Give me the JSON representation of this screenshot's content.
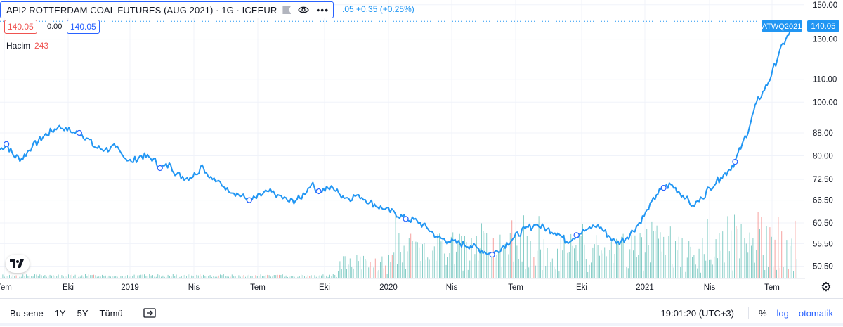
{
  "header": {
    "title": "API2 ROTTERDAM COAL FUTURES (AUG 2021) · 1G · ICEEUR",
    "change_partial": ".05",
    "change": "+0.35 (+0.25%)"
  },
  "legend": {
    "price_box_red": "140.05",
    "change_value": "0.00",
    "price_box_blue": "140.05",
    "volume_label": "Hacim",
    "volume_value": "243"
  },
  "price_scale": {
    "ticks": [
      "150.00",
      "130.00",
      "110.00",
      "100.00",
      "88.00",
      "80.00",
      "72.50",
      "66.50",
      "60.50",
      "55.50",
      "50.50"
    ],
    "symbol_tag": "ATWQ2021",
    "last_price": "140.05"
  },
  "time_axis": {
    "labels": [
      "Tem",
      "Eki",
      "2019",
      "Nis",
      "Tem",
      "Eki",
      "2020",
      "Nis",
      "Tem",
      "Eki",
      "2021",
      "Nis",
      "Tem"
    ]
  },
  "bottom_bar": {
    "ranges": [
      "Bu sene",
      "1Y",
      "5Y",
      "Tümü"
    ],
    "time": "19:01:20 (UTC+3)",
    "percent": "%",
    "log": "log",
    "auto": "otomatik"
  },
  "colors": {
    "line": "#2196f3",
    "volume_up": "#26a69a",
    "volume_down": "#ef5350",
    "accent": "#2962ff"
  },
  "chart_data": {
    "type": "line",
    "scale": "log",
    "ylim": [
      48,
      153
    ],
    "x_start": "2018-07-01",
    "x_end": "2021-07-31",
    "series": [
      {
        "values": [
          [
            "2018-07-01",
            82
          ],
          [
            "2018-07-10",
            84
          ],
          [
            "2018-07-20",
            80
          ],
          [
            "2018-07-31",
            79
          ],
          [
            "2018-08-15",
            83
          ],
          [
            "2018-09-01",
            87
          ],
          [
            "2018-09-20",
            90
          ],
          [
            "2018-10-01",
            90
          ],
          [
            "2018-10-10",
            88
          ],
          [
            "2018-10-20",
            88
          ],
          [
            "2018-11-01",
            86
          ],
          [
            "2018-11-10",
            83
          ],
          [
            "2018-11-25",
            82
          ],
          [
            "2018-12-10",
            83
          ],
          [
            "2018-12-20",
            80
          ],
          [
            "2019-01-01",
            78
          ],
          [
            "2019-01-15",
            80
          ],
          [
            "2019-02-01",
            79
          ],
          [
            "2019-02-10",
            76
          ],
          [
            "2019-02-25",
            77
          ],
          [
            "2019-03-05",
            74
          ],
          [
            "2019-03-20",
            73
          ],
          [
            "2019-04-01",
            74
          ],
          [
            "2019-04-10",
            77
          ],
          [
            "2019-04-20",
            73
          ],
          [
            "2019-05-01",
            72
          ],
          [
            "2019-05-15",
            70
          ],
          [
            "2019-05-31",
            68
          ],
          [
            "2019-06-15",
            66.5
          ],
          [
            "2019-06-25",
            67
          ],
          [
            "2019-07-10",
            69
          ],
          [
            "2019-07-25",
            68
          ],
          [
            "2019-08-10",
            66
          ],
          [
            "2019-08-25",
            67
          ],
          [
            "2019-09-10",
            71
          ],
          [
            "2019-09-20",
            69
          ],
          [
            "2019-10-10",
            70
          ],
          [
            "2019-10-20",
            68
          ],
          [
            "2019-11-01",
            67
          ],
          [
            "2019-11-15",
            68
          ],
          [
            "2019-12-01",
            66
          ],
          [
            "2019-12-20",
            64
          ],
          [
            "2020-01-05",
            63
          ],
          [
            "2020-01-20",
            61.5
          ],
          [
            "2020-02-05",
            61
          ],
          [
            "2020-02-20",
            59
          ],
          [
            "2020-03-05",
            57
          ],
          [
            "2020-03-20",
            56
          ],
          [
            "2020-04-05",
            55.5
          ],
          [
            "2020-04-20",
            55
          ],
          [
            "2020-05-05",
            54
          ],
          [
            "2020-05-20",
            53
          ],
          [
            "2020-06-05",
            55
          ],
          [
            "2020-06-20",
            57
          ],
          [
            "2020-07-05",
            59
          ],
          [
            "2020-07-20",
            60
          ],
          [
            "2020-08-05",
            59
          ],
          [
            "2020-08-20",
            58
          ],
          [
            "2020-09-01",
            56
          ],
          [
            "2020-09-15",
            57.5
          ],
          [
            "2020-10-01",
            59
          ],
          [
            "2020-10-15",
            60
          ],
          [
            "2020-11-01",
            57
          ],
          [
            "2020-11-10",
            55.5
          ],
          [
            "2020-11-25",
            57
          ],
          [
            "2020-12-10",
            60
          ],
          [
            "2020-12-25",
            64
          ],
          [
            "2021-01-05",
            68
          ],
          [
            "2021-01-15",
            70
          ],
          [
            "2021-01-25",
            71
          ],
          [
            "2021-02-05",
            69
          ],
          [
            "2021-02-15",
            67
          ],
          [
            "2021-02-25",
            65
          ],
          [
            "2021-03-10",
            67
          ],
          [
            "2021-03-20",
            70
          ],
          [
            "2021-04-05",
            73
          ],
          [
            "2021-04-15",
            75
          ],
          [
            "2021-04-25",
            78
          ],
          [
            "2021-05-05",
            84
          ],
          [
            "2021-05-15",
            90
          ],
          [
            "2021-05-25",
            100
          ],
          [
            "2021-06-05",
            105
          ],
          [
            "2021-06-15",
            112
          ],
          [
            "2021-06-25",
            122
          ],
          [
            "2021-07-05",
            130
          ],
          [
            "2021-07-15",
            135
          ],
          [
            "2021-07-25",
            140.05
          ]
        ]
      }
    ],
    "volume_max": 243
  }
}
